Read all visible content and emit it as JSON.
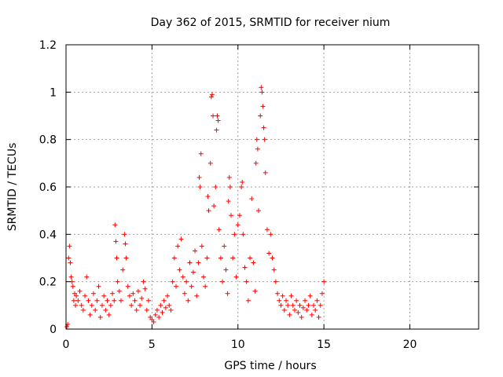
{
  "chart_data": {
    "type": "scatter",
    "title": "Day 362 of 2015, SRMTID for receiver nium",
    "xlabel": "GPS time / hours",
    "ylabel": "SRMTID / TECUs",
    "xlim": [
      0,
      24
    ],
    "ylim": [
      0,
      1.2
    ],
    "xticks": [
      0,
      5,
      10,
      15,
      20
    ],
    "yticks": [
      0,
      0.2,
      0.4,
      0.6,
      0.8,
      1,
      1.2
    ],
    "ytick_labels": [
      "0",
      "0.2",
      "0.4",
      "0.6",
      "0.8",
      "1",
      "1.2"
    ],
    "grid": true,
    "marker": "+",
    "series": [
      {
        "name": "SRMTID",
        "color": "#ff0000",
        "points": [
          [
            0.05,
            0.01
          ],
          [
            0.1,
            0.02
          ],
          [
            0.15,
            0.3
          ],
          [
            0.2,
            0.35
          ],
          [
            0.25,
            0.28
          ],
          [
            0.3,
            0.22
          ],
          [
            0.35,
            0.2
          ],
          [
            0.4,
            0.18
          ],
          [
            0.45,
            0.12
          ],
          [
            0.5,
            0.15
          ],
          [
            0.55,
            0.1
          ],
          [
            0.6,
            0.14
          ],
          [
            0.7,
            0.12
          ],
          [
            0.8,
            0.16
          ],
          [
            0.9,
            0.1
          ],
          [
            1.0,
            0.08
          ],
          [
            1.1,
            0.14
          ],
          [
            1.2,
            0.22
          ],
          [
            1.3,
            0.12
          ],
          [
            1.4,
            0.06
          ],
          [
            1.5,
            0.1
          ],
          [
            1.6,
            0.15
          ],
          [
            1.7,
            0.08
          ],
          [
            1.8,
            0.12
          ],
          [
            1.9,
            0.18
          ],
          [
            2.0,
            0.05
          ],
          [
            2.1,
            0.1
          ],
          [
            2.2,
            0.14
          ],
          [
            2.3,
            0.08
          ],
          [
            2.4,
            0.12
          ],
          [
            2.5,
            0.06
          ],
          [
            2.6,
            0.1
          ],
          [
            2.7,
            0.15
          ],
          [
            2.8,
            0.12
          ],
          [
            2.85,
            0.44
          ],
          [
            2.9,
            0.37
          ],
          [
            2.95,
            0.3
          ],
          [
            3.0,
            0.2
          ],
          [
            3.1,
            0.16
          ],
          [
            3.2,
            0.12
          ],
          [
            3.3,
            0.25
          ],
          [
            3.4,
            0.4
          ],
          [
            3.45,
            0.36
          ],
          [
            3.5,
            0.3
          ],
          [
            3.6,
            0.18
          ],
          [
            3.7,
            0.14
          ],
          [
            3.8,
            0.1
          ],
          [
            3.9,
            0.15
          ],
          [
            4.0,
            0.12
          ],
          [
            4.1,
            0.08
          ],
          [
            4.2,
            0.16
          ],
          [
            4.3,
            0.1
          ],
          [
            4.4,
            0.13
          ],
          [
            4.5,
            0.2
          ],
          [
            4.6,
            0.17
          ],
          [
            4.7,
            0.08
          ],
          [
            4.8,
            0.12
          ],
          [
            4.9,
            0.05
          ],
          [
            5.0,
            0.04
          ],
          [
            5.1,
            0.03
          ],
          [
            5.2,
            0.06
          ],
          [
            5.3,
            0.08
          ],
          [
            5.4,
            0.05
          ],
          [
            5.5,
            0.1
          ],
          [
            5.6,
            0.07
          ],
          [
            5.7,
            0.12
          ],
          [
            5.8,
            0.09
          ],
          [
            5.9,
            0.14
          ],
          [
            6.0,
            0.1
          ],
          [
            6.1,
            0.08
          ],
          [
            6.2,
            0.2
          ],
          [
            6.3,
            0.3
          ],
          [
            6.4,
            0.18
          ],
          [
            6.5,
            0.35
          ],
          [
            6.6,
            0.25
          ],
          [
            6.7,
            0.38
          ],
          [
            6.8,
            0.22
          ],
          [
            6.9,
            0.15
          ],
          [
            7.0,
            0.2
          ],
          [
            7.1,
            0.12
          ],
          [
            7.2,
            0.28
          ],
          [
            7.3,
            0.18
          ],
          [
            7.4,
            0.24
          ],
          [
            7.5,
            0.33
          ],
          [
            7.6,
            0.14
          ],
          [
            7.7,
            0.28
          ],
          [
            7.75,
            0.64
          ],
          [
            7.8,
            0.6
          ],
          [
            7.85,
            0.74
          ],
          [
            7.9,
            0.35
          ],
          [
            8.0,
            0.22
          ],
          [
            8.1,
            0.18
          ],
          [
            8.2,
            0.3
          ],
          [
            8.25,
            0.56
          ],
          [
            8.3,
            0.5
          ],
          [
            8.4,
            0.7
          ],
          [
            8.45,
            0.98
          ],
          [
            8.5,
            0.99
          ],
          [
            8.55,
            0.9
          ],
          [
            8.6,
            0.52
          ],
          [
            8.7,
            0.6
          ],
          [
            8.75,
            0.84
          ],
          [
            8.8,
            0.9
          ],
          [
            8.85,
            0.88
          ],
          [
            8.9,
            0.42
          ],
          [
            9.0,
            0.3
          ],
          [
            9.1,
            0.2
          ],
          [
            9.2,
            0.35
          ],
          [
            9.3,
            0.25
          ],
          [
            9.4,
            0.15
          ],
          [
            9.45,
            0.54
          ],
          [
            9.5,
            0.64
          ],
          [
            9.55,
            0.6
          ],
          [
            9.6,
            0.48
          ],
          [
            9.7,
            0.3
          ],
          [
            9.8,
            0.4
          ],
          [
            9.9,
            0.22
          ],
          [
            10.0,
            0.44
          ],
          [
            10.1,
            0.48
          ],
          [
            10.2,
            0.6
          ],
          [
            10.25,
            0.62
          ],
          [
            10.3,
            0.4
          ],
          [
            10.4,
            0.26
          ],
          [
            10.5,
            0.2
          ],
          [
            10.6,
            0.12
          ],
          [
            10.7,
            0.3
          ],
          [
            10.8,
            0.55
          ],
          [
            10.9,
            0.28
          ],
          [
            11.0,
            0.16
          ],
          [
            11.05,
            0.7
          ],
          [
            11.1,
            0.8
          ],
          [
            11.15,
            0.76
          ],
          [
            11.2,
            0.5
          ],
          [
            11.3,
            0.9
          ],
          [
            11.35,
            1.02
          ],
          [
            11.4,
            1.0
          ],
          [
            11.45,
            0.94
          ],
          [
            11.5,
            0.85
          ],
          [
            11.55,
            0.8
          ],
          [
            11.6,
            0.66
          ],
          [
            11.7,
            0.42
          ],
          [
            11.8,
            0.32
          ],
          [
            11.9,
            0.4
          ],
          [
            12.0,
            0.3
          ],
          [
            12.1,
            0.25
          ],
          [
            12.2,
            0.2
          ],
          [
            12.3,
            0.15
          ],
          [
            12.4,
            0.12
          ],
          [
            12.5,
            0.1
          ],
          [
            12.6,
            0.14
          ],
          [
            12.7,
            0.08
          ],
          [
            12.8,
            0.12
          ],
          [
            12.9,
            0.1
          ],
          [
            13.0,
            0.06
          ],
          [
            13.1,
            0.14
          ],
          [
            13.2,
            0.1
          ],
          [
            13.3,
            0.08
          ],
          [
            13.4,
            0.12
          ],
          [
            13.5,
            0.07
          ],
          [
            13.6,
            0.1
          ],
          [
            13.7,
            0.05
          ],
          [
            13.8,
            0.09
          ],
          [
            13.9,
            0.12
          ],
          [
            14.0,
            0.08
          ],
          [
            14.1,
            0.1
          ],
          [
            14.2,
            0.14
          ],
          [
            14.3,
            0.06
          ],
          [
            14.4,
            0.1
          ],
          [
            14.5,
            0.08
          ],
          [
            14.6,
            0.12
          ],
          [
            14.7,
            0.05
          ],
          [
            14.8,
            0.1
          ],
          [
            14.9,
            0.15
          ],
          [
            15.0,
            0.2
          ]
        ]
      }
    ]
  }
}
